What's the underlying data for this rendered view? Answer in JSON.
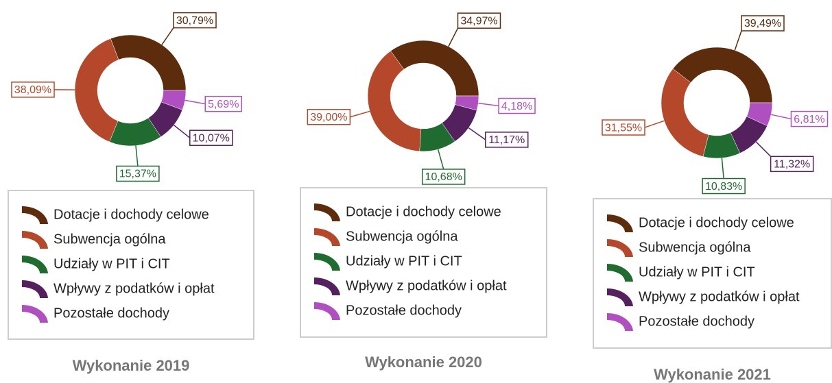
{
  "chart_data": [
    {
      "type": "pie",
      "title": "Wykonanie 2019",
      "categories": [
        "Dotacje i dochody celowe",
        "Subwencja ogólna",
        "Udziały w PIT i CIT",
        "Wpływy z podatków i opłat",
        "Pozostałe dochody"
      ],
      "values": [
        30.79,
        38.09,
        15.37,
        10.07,
        5.69
      ],
      "value_labels": [
        "30,79%",
        "38,09%",
        "15,37%",
        "10,07%",
        "5,69%"
      ],
      "colors": [
        "#5c2c0c",
        "#b5472a",
        "#1f6b30",
        "#55205e",
        "#b050c0"
      ]
    },
    {
      "type": "pie",
      "title": "Wykonanie 2020",
      "categories": [
        "Dotacje i dochody celowe",
        "Subwencja ogólna",
        "Udziały w PIT i CIT",
        "Wpływy z podatków i opłat",
        "Pozostałe dochody"
      ],
      "values": [
        34.97,
        39.0,
        10.68,
        11.17,
        4.18
      ],
      "value_labels": [
        "34,97%",
        "39,00%",
        "10,68%",
        "11,17%",
        "4,18%"
      ],
      "colors": [
        "#5c2c0c",
        "#b5472a",
        "#1f6b30",
        "#55205e",
        "#b050c0"
      ]
    },
    {
      "type": "pie",
      "title": "Wykonanie 2021",
      "categories": [
        "Dotacje i dochody celowe",
        "Subwencja ogólna",
        "Udziały w PIT i CIT",
        "Wpływy z podatków i opłat",
        "Pozostałe dochody"
      ],
      "values": [
        39.49,
        31.55,
        10.83,
        11.32,
        6.81
      ],
      "value_labels": [
        "39,49%",
        "31,55%",
        "10,83%",
        "11,32%",
        "6,81%"
      ],
      "colors": [
        "#5c2c0c",
        "#b5472a",
        "#1f6b30",
        "#55205e",
        "#b050c0"
      ]
    }
  ]
}
